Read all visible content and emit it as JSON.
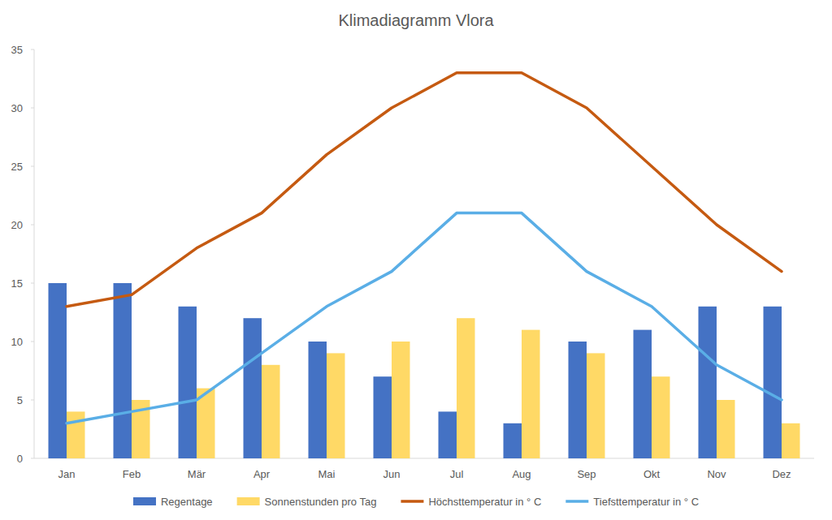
{
  "chart_data": {
    "type": "bar",
    "title": "Klimadiagramm Vlora",
    "categories": [
      "Jan",
      "Feb",
      "Mär",
      "Apr",
      "Mai",
      "Jun",
      "Jul",
      "Aug",
      "Sep",
      "Okt",
      "Nov",
      "Dez"
    ],
    "series": [
      {
        "name": "Regentage",
        "type": "bar",
        "color": "#4472c4",
        "values": [
          15,
          15,
          13,
          12,
          10,
          7,
          4,
          3,
          10,
          11,
          13,
          13
        ]
      },
      {
        "name": "Sonnenstunden pro Tag",
        "type": "bar",
        "color": "#ffd966",
        "values": [
          4,
          5,
          6,
          8,
          9,
          10,
          12,
          11,
          9,
          7,
          5,
          3
        ]
      },
      {
        "name": "Höchsttemperatur in ° C",
        "type": "line",
        "color": "#c55a11",
        "values": [
          13,
          14,
          18,
          21,
          26,
          30,
          33,
          33,
          30,
          25,
          20,
          16
        ]
      },
      {
        "name": "Tiefsttemperatur in ° C",
        "type": "line",
        "color": "#5aaee6",
        "values": [
          3,
          4,
          5,
          9,
          13,
          16,
          21,
          21,
          16,
          13,
          8,
          5
        ]
      }
    ],
    "ylim": [
      0,
      35
    ],
    "yticks": [
      0,
      5,
      10,
      15,
      20,
      25,
      30,
      35
    ],
    "grid": false,
    "legend": "bottom"
  }
}
